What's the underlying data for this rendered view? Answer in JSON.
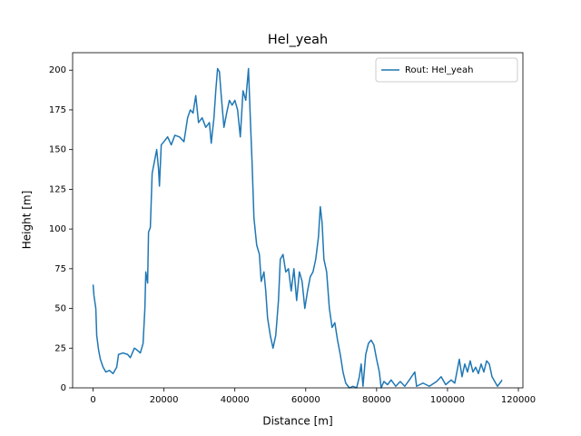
{
  "chart_data": {
    "type": "line",
    "title": "Hel_yeah",
    "x_label": "Distance [m]",
    "y_label": "Height [m]",
    "x": [
      0,
      256,
      769,
      1026,
      1538,
      2051,
      2821,
      3590,
      4615,
      5641,
      6667,
      7179,
      8462,
      9744,
      10513,
      11641,
      12308,
      13333,
      14103,
      14615,
      14872,
      15385,
      15641,
      16154,
      16667,
      17436,
      17949,
      18462,
      18718,
      19231,
      20000,
      21026,
      22051,
      23077,
      24359,
      25641,
      26667,
      27436,
      28205,
      28974,
      29744,
      30769,
      31795,
      32821,
      33333,
      34103,
      34615,
      35128,
      35641,
      36154,
      36923,
      37692,
      38462,
      39231,
      40000,
      40769,
      41538,
      42308,
      43077,
      43846,
      44359,
      44872,
      45385,
      46154,
      46923,
      47436,
      48205,
      48718,
      49231,
      50000,
      50769,
      51538,
      52308,
      52821,
      53590,
      54359,
      55128,
      55897,
      56667,
      57436,
      58205,
      58974,
      59744,
      60513,
      61282,
      62051,
      62821,
      63590,
      64103,
      64615,
      65128,
      65897,
      66667,
      67436,
      68205,
      68974,
      69744,
      70513,
      71282,
      72308,
      73333,
      74359,
      75128,
      75641,
      76154,
      76923,
      77692,
      78462,
      79231,
      80000,
      80769,
      81282,
      82051,
      83077,
      84103,
      85385,
      86667,
      87949,
      89231,
      90769,
      91282,
      93077,
      94872,
      96923,
      98205,
      99487,
      101026,
      102051,
      103333,
      104103,
      104872,
      105641,
      106410,
      107179,
      107949,
      108718,
      109487,
      110256,
      111026,
      111795,
      112564,
      113333,
      114103,
      115128,
      115385
    ],
    "series": [
      {
        "name": "Rout: Hel_yeah",
        "color": "#1f77b4",
        "values": [
          65,
          58,
          50,
          33,
          24,
          18,
          13,
          10,
          11,
          9,
          13,
          21,
          22,
          21,
          19,
          25,
          24,
          22,
          28,
          50,
          73,
          66,
          98,
          101,
          135,
          144,
          150,
          138,
          127,
          153,
          155,
          158,
          153,
          159,
          158,
          155,
          170,
          175,
          173,
          184,
          167,
          170,
          164,
          167,
          154,
          170,
          187,
          201,
          199,
          184,
          164,
          173,
          181,
          178,
          181,
          175,
          158,
          187,
          181,
          201,
          170,
          141,
          107,
          90,
          84,
          67,
          73,
          61,
          44,
          33,
          25,
          33,
          55,
          81,
          84,
          73,
          75,
          61,
          75,
          55,
          73,
          67,
          50,
          61,
          70,
          73,
          81,
          95,
          114,
          104,
          81,
          73,
          50,
          38,
          41,
          30,
          21,
          10,
          3,
          0,
          1,
          0,
          7,
          15,
          1,
          21,
          28,
          30,
          27,
          18,
          10,
          0,
          4,
          2,
          5,
          1,
          4,
          1,
          5,
          10,
          1,
          3,
          1,
          4,
          7,
          2,
          5,
          3,
          18,
          7,
          15,
          10,
          17,
          10,
          13,
          9,
          15,
          10,
          17,
          15,
          7,
          4,
          1,
          4,
          5
        ]
      }
    ],
    "xlim": [
      -5775,
      121275
    ],
    "ylim": [
      0,
      211
    ],
    "xticks": [
      0,
      20000,
      40000,
      60000,
      80000,
      100000,
      120000
    ],
    "yticks": [
      0,
      25,
      50,
      75,
      100,
      125,
      150,
      175,
      200
    ],
    "legend": "upper right"
  }
}
